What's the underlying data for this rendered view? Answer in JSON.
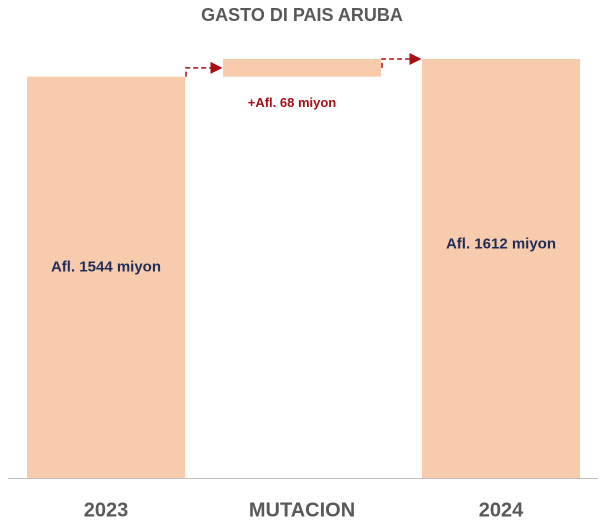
{
  "chart_data": {
    "type": "waterfall",
    "title": "GASTO DI PAIS ARUBA",
    "categories": [
      "2023",
      "MUTACION",
      "2024"
    ],
    "values": [
      1544,
      68,
      1612
    ],
    "value_labels": [
      "Afl. 1544 miyon",
      "+Afl. 68 miyon",
      "Afl. 1612 miyon"
    ],
    "color": "#f8cbad",
    "connector_color": "#a50f15"
  }
}
